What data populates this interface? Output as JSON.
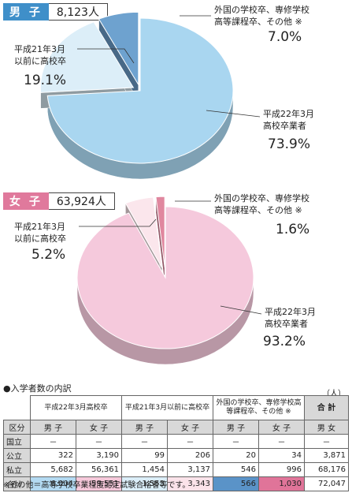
{
  "male": {
    "tag": "男 子",
    "count": "8,123人",
    "labels": {
      "other": [
        "外国の学校卒、専修学校",
        "高等課程卒、その他 ※"
      ],
      "other_pct": "7.0%",
      "before": [
        "平成21年3月",
        "以前に高校卒"
      ],
      "before_pct": "19.1%",
      "current": [
        "平成22年3月",
        "高校卒業者"
      ],
      "current_pct": "73.9%"
    }
  },
  "female": {
    "tag": "女 子",
    "count": "63,924人",
    "labels": {
      "other": [
        "外国の学校卒、専修学校",
        "高等課程卒、その他 ※"
      ],
      "other_pct": "1.6%",
      "before": [
        "平成21年3月",
        "以前に高校卒"
      ],
      "before_pct": "5.2%",
      "current": [
        "平成22年3月",
        "高校卒業者"
      ],
      "current_pct": "93.2%"
    }
  },
  "chart_data": [
    {
      "type": "pie",
      "title": "男 子 8,123人",
      "categories": [
        "平成22年3月高校卒業者",
        "平成21年3月以前に高校卒",
        "外国の学校卒、専修学校高等課程卒、その他 ※"
      ],
      "values": [
        73.9,
        19.1,
        7.0
      ],
      "colors": [
        "#a9d6f0",
        "#dceef8",
        "#6ea2cf"
      ]
    },
    {
      "type": "pie",
      "title": "女 子 63,924人",
      "categories": [
        "平成22年3月高校卒業者",
        "平成21年3月以前に高校卒",
        "外国の学校卒、専修学校高等課程卒、その他 ※"
      ],
      "values": [
        93.2,
        5.2,
        1.6
      ],
      "colors": [
        "#f5c9dc",
        "#fbe6ec",
        "#e0879f"
      ]
    }
  ],
  "table": {
    "title": "●入学者数の内訳",
    "unit": "（人）",
    "groups": [
      "平成22年3月高校卒",
      "平成21年3月以前に高校卒",
      "外国の学校卒、専修学校高等課程卒、その他 ※",
      "合 計"
    ],
    "sub": [
      "区分",
      "男 子",
      "女 子",
      "男 子",
      "女 子",
      "男 子",
      "女 子",
      "男 女"
    ],
    "rows": [
      {
        "label": "国立",
        "cells": [
          "－",
          "－",
          "－",
          "－",
          "－",
          "－",
          "－"
        ]
      },
      {
        "label": "公立",
        "cells": [
          "322",
          "3,190",
          "99",
          "206",
          "20",
          "34",
          "3,871"
        ]
      },
      {
        "label": "私立",
        "cells": [
          "5,682",
          "56,361",
          "1,454",
          "3,137",
          "546",
          "996",
          "68,176"
        ]
      },
      {
        "label": "合計",
        "cells": [
          "6,004",
          "59,551",
          "1,553",
          "3,343",
          "566",
          "1,030",
          "72,047"
        ]
      }
    ],
    "note": "※その他＝高等学校卒業程度認定試験合格者等です。"
  },
  "colors": {
    "male_tag": "#3f8fc9",
    "female_tag": "#e0799c",
    "male_hl": [
      "#b3daf2",
      "#dbeef9",
      "#5a93c8"
    ],
    "female_hl": [
      "#f6c8da",
      "#fbe3ea",
      "#e07499"
    ]
  }
}
